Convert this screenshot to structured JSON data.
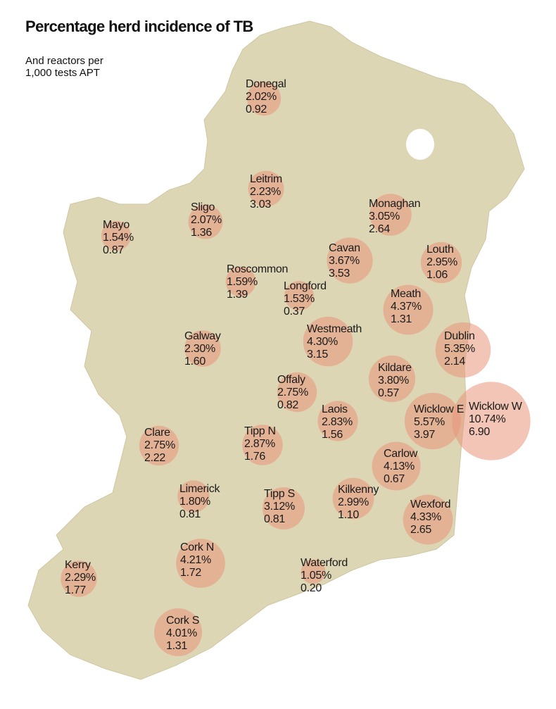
{
  "title": "Percentage herd incidence of TB",
  "subtitle": "And reactors per 1,000 tests APT",
  "colors": {
    "land": "#ddd6b5",
    "sea": "#ffffff",
    "border": "#eeead6",
    "bubble": "#e8957a"
  },
  "counties": [
    {
      "name": "Donegal",
      "pct": "2.02%",
      "reactors": "0.92"
    },
    {
      "name": "Leitrim",
      "pct": "2.23%",
      "reactors": "3.03"
    },
    {
      "name": "Sligo",
      "pct": "2.07%",
      "reactors": "1.36"
    },
    {
      "name": "Mayo",
      "pct": "1.54%",
      "reactors": "0.87"
    },
    {
      "name": "Monaghan",
      "pct": "3.05%",
      "reactors": "2.64"
    },
    {
      "name": "Cavan",
      "pct": "3.67%",
      "reactors": "3.53"
    },
    {
      "name": "Louth",
      "pct": "2.95%",
      "reactors": "1.06"
    },
    {
      "name": "Roscommon",
      "pct": "1.59%",
      "reactors": "1.39"
    },
    {
      "name": "Longford",
      "pct": "1.53%",
      "reactors": "0.37"
    },
    {
      "name": "Meath",
      "pct": "4.37%",
      "reactors": "1.31"
    },
    {
      "name": "Westmeath",
      "pct": "4.30%",
      "reactors": "3.15"
    },
    {
      "name": "Galway",
      "pct": "2.30%",
      "reactors": "1.60"
    },
    {
      "name": "Dublin",
      "pct": "5.35%",
      "reactors": "2.14"
    },
    {
      "name": "Kildare",
      "pct": "3.80%",
      "reactors": "0.57"
    },
    {
      "name": "Offaly",
      "pct": "2.75%",
      "reactors": "0.82"
    },
    {
      "name": "Laois",
      "pct": "2.83%",
      "reactors": "1.56"
    },
    {
      "name": "Wicklow E",
      "pct": "5.57%",
      "reactors": "3.97"
    },
    {
      "name": "Wicklow W",
      "pct": "10.74%",
      "reactors": "6.90"
    },
    {
      "name": "Clare",
      "pct": "2.75%",
      "reactors": "2.22"
    },
    {
      "name": "Tipp  N",
      "pct": "2.87%",
      "reactors": "1.76"
    },
    {
      "name": "Carlow",
      "pct": "4.13%",
      "reactors": "0.67"
    },
    {
      "name": "Limerick",
      "pct": "1.80%",
      "reactors": "0.81"
    },
    {
      "name": "Tipp  S",
      "pct": "3.12%",
      "reactors": "0.81"
    },
    {
      "name": "Kilkenny",
      "pct": "2.99%",
      "reactors": "1.10"
    },
    {
      "name": "Wexford",
      "pct": "4.33%",
      "reactors": "2.65"
    },
    {
      "name": "Cork N",
      "pct": "4.21%",
      "reactors": "1.72"
    },
    {
      "name": "Kerry",
      "pct": "2.29%",
      "reactors": "1.77"
    },
    {
      "name": "Waterford",
      "pct": "1.05%",
      "reactors": "0.20"
    },
    {
      "name": "Cork S",
      "pct": "4.01%",
      "reactors": "1.31"
    }
  ]
}
